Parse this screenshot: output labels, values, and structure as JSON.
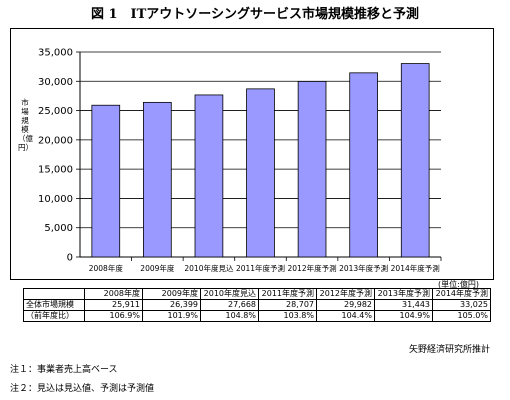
{
  "title": "図 1　ITアウトソーシングサービス市場規模推移と予測",
  "y_axis_label": "市場規模（億円）",
  "unit_label": "(単位:億円)",
  "table": {
    "headers": [
      "",
      "2008年度",
      "2009年度",
      "2010年度見込",
      "2011年度予測",
      "2012年度予測",
      "2013年度予測",
      "2014年度予測"
    ],
    "rows": [
      {
        "label": "全体市場規模",
        "cells": [
          "25,911",
          "26,399",
          "27,668",
          "28,707",
          "29,982",
          "31,443",
          "33,025"
        ]
      },
      {
        "label": "（前年度比）",
        "cells": [
          "106.9%",
          "101.9%",
          "104.8%",
          "103.8%",
          "104.4%",
          "104.9%",
          "105.0%"
        ]
      }
    ]
  },
  "source": "矢野経済研究所推計",
  "notes": [
    "注１：事業者売上高ベース",
    "注２：見込は見込値、予測は予測値"
  ],
  "chart_data": {
    "type": "bar",
    "categories": [
      "2008年度",
      "2009年度",
      "2010年度見込",
      "2011年度予測",
      "2012年度予測",
      "2013年度予測",
      "2014年度予測"
    ],
    "values": [
      25911,
      26399,
      27668,
      28707,
      29982,
      31443,
      33025
    ],
    "ylabel": "市場規模（億円）",
    "ylim": [
      0,
      35000
    ],
    "yticks": [
      0,
      5000,
      10000,
      15000,
      20000,
      25000,
      30000,
      35000
    ],
    "ytick_labels": [
      "0",
      "5,000",
      "10,000",
      "15,000",
      "20,000",
      "25,000",
      "30,000",
      "35,000"
    ],
    "grid": true,
    "bar_color": "#9999ff",
    "bar_edge_color": "#000000"
  }
}
